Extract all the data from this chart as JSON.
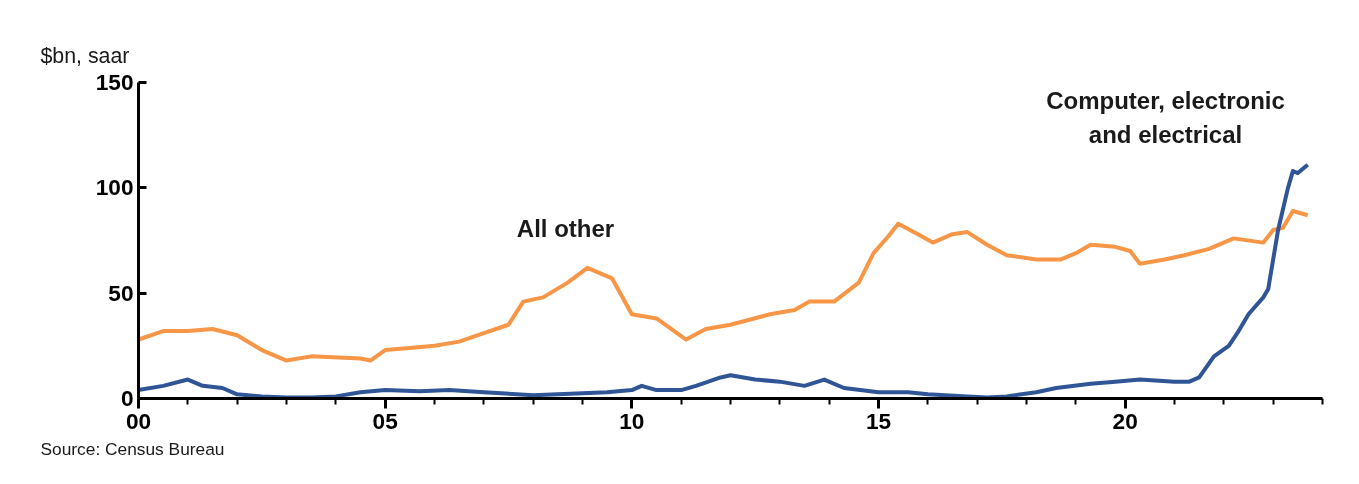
{
  "chart_data": {
    "type": "line",
    "ylabel": "$bn, saar",
    "annotations": [
      "Source: Census Bureau"
    ],
    "xlim": [
      0,
      24
    ],
    "ylim": [
      0,
      150
    ],
    "xticks": [
      {
        "value": 0,
        "label": "00"
      },
      {
        "value": 5,
        "label": "05"
      },
      10,
      15,
      20
    ],
    "yticks": [
      0,
      50,
      100,
      150
    ],
    "grid": false,
    "legend": false,
    "marker": "none",
    "line_style": "solid",
    "series": [
      {
        "name": "All other",
        "color": "#f79646",
        "x": [
          0,
          0.5,
          1.0,
          1.5,
          2.0,
          2.5,
          3.0,
          3.5,
          4.5,
          4.7,
          5.0,
          5.5,
          6.0,
          6.5,
          7.0,
          7.5,
          7.8,
          8.2,
          8.7,
          9.1,
          9.6,
          10.0,
          10.5,
          11.1,
          11.5,
          12.0,
          12.8,
          13.3,
          13.6,
          14.1,
          14.6,
          14.9,
          15.2,
          15.4,
          15.8,
          16.1,
          16.5,
          16.8,
          17.2,
          17.6,
          18.2,
          18.7,
          19.0,
          19.3,
          19.8,
          20.1,
          20.3,
          20.8,
          21.2,
          21.7,
          22.2,
          22.8,
          23.0,
          23.2,
          23.4,
          23.7
        ],
        "values": [
          28,
          32,
          32,
          33,
          30,
          23,
          18,
          20,
          19,
          18,
          23,
          24,
          25,
          27,
          31,
          35,
          46,
          48,
          55,
          62,
          57,
          40,
          38,
          28,
          33,
          35,
          40,
          42,
          46,
          46,
          55,
          69,
          77,
          83,
          78,
          74,
          78,
          79,
          73,
          68,
          66,
          66,
          69,
          73,
          72,
          70,
          64,
          66,
          68,
          71,
          76,
          74,
          80,
          81,
          89,
          87
        ]
      },
      {
        "name": "Computer, electronic\nand electrical",
        "color": "#2f5597",
        "x": [
          0,
          0.5,
          1.0,
          1.3,
          1.7,
          2.0,
          2.5,
          3.0,
          3.5,
          4.0,
          4.5,
          5.0,
          5.7,
          6.3,
          7.0,
          8.0,
          8.5,
          9.5,
          10.0,
          10.2,
          10.5,
          11.0,
          11.3,
          11.8,
          12.0,
          12.5,
          13.0,
          13.5,
          13.9,
          14.3,
          15.0,
          15.6,
          16.0,
          16.8,
          17.2,
          17.6,
          18.2,
          18.6,
          19.3,
          19.8,
          20.3,
          21.0,
          21.3,
          21.5,
          21.8,
          22.1,
          22.3,
          22.5,
          22.8,
          22.9,
          23.1,
          23.3,
          23.4,
          23.5,
          23.7
        ],
        "values": [
          4,
          6,
          9,
          6,
          5,
          2,
          1,
          0.5,
          0.5,
          1,
          3,
          4,
          3.5,
          4,
          3,
          1.5,
          2,
          3,
          4,
          6,
          4,
          4,
          6,
          10,
          11,
          9,
          8,
          6,
          9,
          5,
          3,
          3,
          2,
          1,
          0.5,
          1,
          3,
          5,
          7,
          8,
          9,
          8,
          8,
          10,
          20,
          25,
          32,
          40,
          48,
          52,
          80,
          100,
          108,
          107,
          111
        ]
      }
    ]
  }
}
